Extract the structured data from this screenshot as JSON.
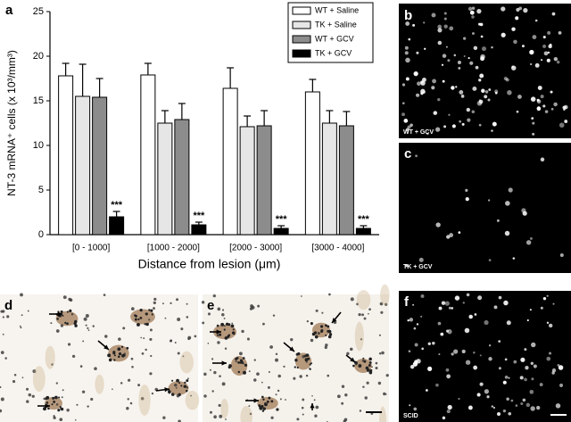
{
  "chart_data": {
    "type": "bar",
    "panel_label": "a",
    "ylabel": "NT-3 mRNA⁺ cells (x 10³/mm³)",
    "xlabel": "Distance from lesion (μm)",
    "categories": [
      "[0 - 1000]",
      "[1000 - 2000]",
      "[2000 - 3000]",
      "[3000 - 4000]"
    ],
    "series": [
      {
        "name": "WT + Saline",
        "color": "#ffffff",
        "values": [
          17.8,
          17.9,
          16.4,
          16.0
        ],
        "errors": [
          1.4,
          1.3,
          2.3,
          1.4
        ]
      },
      {
        "name": "TK + Saline",
        "color": "#e6e6e6",
        "values": [
          15.5,
          12.5,
          12.1,
          12.5
        ],
        "errors": [
          3.6,
          1.4,
          1.2,
          1.4
        ]
      },
      {
        "name": "WT + GCV",
        "color": "#8c8c8c",
        "values": [
          15.4,
          12.9,
          12.2,
          12.2
        ],
        "errors": [
          2.1,
          1.8,
          1.7,
          1.6
        ]
      },
      {
        "name": "TK + GCV",
        "color": "#000000",
        "values": [
          2.0,
          1.1,
          0.7,
          0.7
        ],
        "errors": [
          0.6,
          0.3,
          0.3,
          0.3
        ],
        "significance": [
          "***",
          "***",
          "***",
          "***"
        ]
      }
    ],
    "ylim": [
      0,
      25
    ],
    "yticks": [
      0,
      5,
      10,
      15,
      20,
      25
    ],
    "legend": "upper right"
  },
  "panels": [
    {
      "label": "b",
      "caption": "WT + GCV"
    },
    {
      "label": "c",
      "caption": "TK + GCV"
    },
    {
      "label": "d"
    },
    {
      "label": "e"
    },
    {
      "label": "f",
      "caption": "SCID"
    }
  ]
}
